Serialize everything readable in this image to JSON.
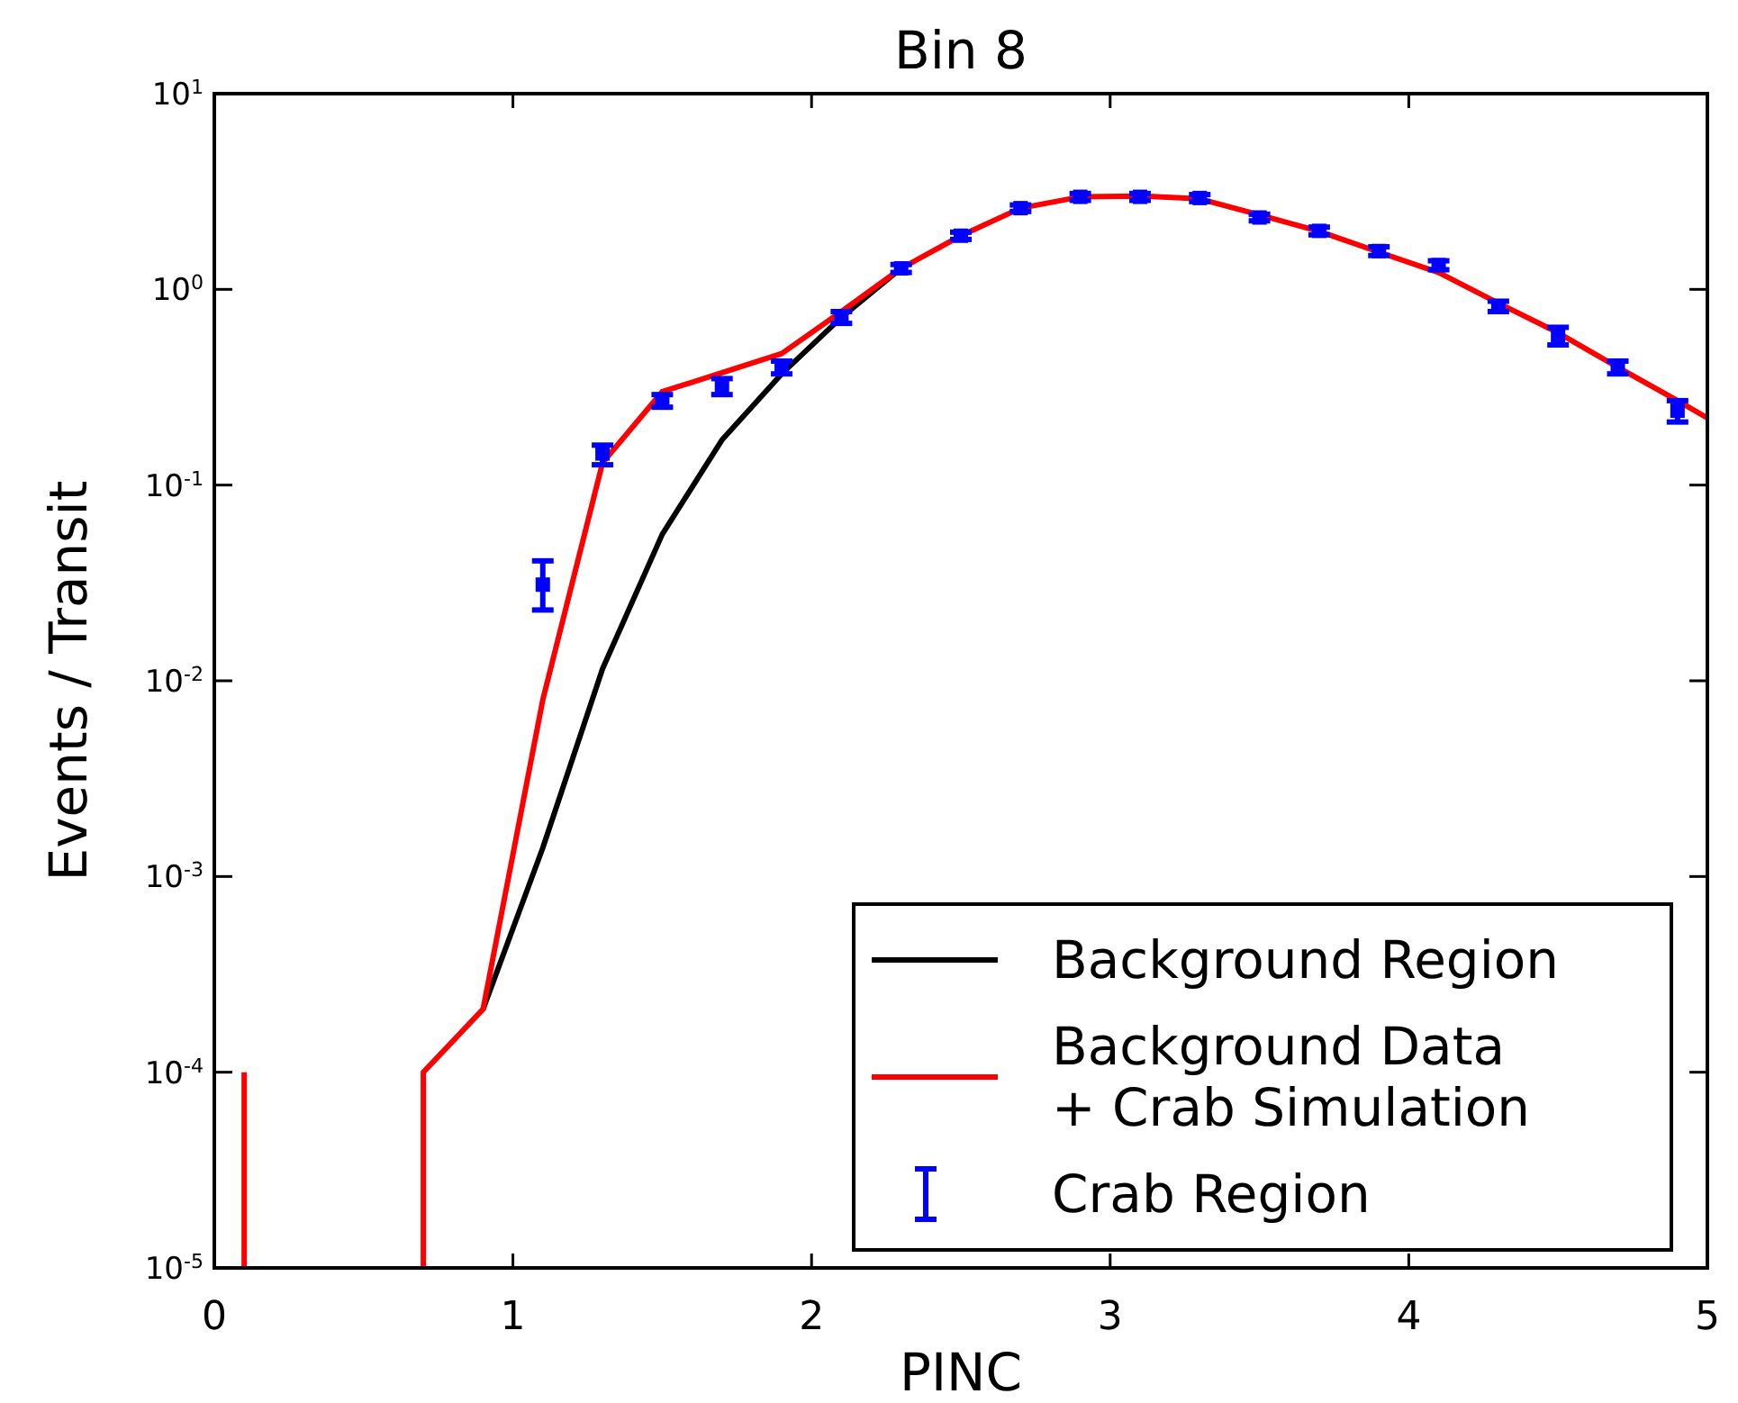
{
  "chart_data": {
    "type": "line",
    "title": "Bin 8",
    "xlabel": "PINC",
    "ylabel": "Events / Transit",
    "log": "y",
    "xlim": [
      0,
      5
    ],
    "xticks": [
      0,
      1,
      2,
      3,
      4,
      5
    ],
    "ylim": [
      1e-05,
      10
    ],
    "yticks": [
      {
        "value": 1e-05,
        "label": "10$^{-5}$"
      },
      {
        "value": 0.0001,
        "label": "10$^{-4}$"
      },
      {
        "value": 0.001,
        "label": "10$^{-3}$"
      },
      {
        "value": 0.01,
        "label": "10$^{-2}$"
      },
      {
        "value": 0.1,
        "label": "10$^{-1}$"
      },
      {
        "value": 1,
        "label": "10$^{0}$"
      },
      {
        "value": 10,
        "label": "10$^{1}$"
      }
    ],
    "grid": false,
    "legend": "bottom right",
    "marker": "none",
    "line_style": "solid",
    "series": [
      {
        "name": "Background Region",
        "color": "#000000",
        "x": [
          0.9,
          1.1,
          1.3,
          1.5,
          1.7,
          1.9,
          2.1,
          2.3
        ],
        "values": [
          0.00021,
          0.0014,
          0.0115,
          0.056,
          0.17,
          0.37,
          0.72,
          1.28
        ]
      },
      {
        "name": "Background Data\n+ Crab Simulation",
        "color": "#ff0000",
        "x": [
          0.1,
          0.1,
          0.3,
          0.5,
          0.7,
          0.7,
          0.9,
          1.1,
          1.3,
          1.5,
          1.7,
          1.9,
          2.1,
          2.3,
          2.5,
          2.7,
          2.9,
          3.1,
          3.3,
          3.5,
          3.7,
          3.9,
          4.1,
          4.3,
          4.5,
          4.7,
          4.9,
          5.0
        ],
        "values": [
          0.0001,
          1e-05,
          null,
          null,
          1e-05,
          0.0001,
          0.00021,
          0.008,
          0.13,
          0.3,
          0.375,
          0.47,
          0.77,
          1.28,
          1.88,
          2.6,
          2.97,
          3.0,
          2.9,
          2.4,
          1.98,
          1.55,
          1.22,
          0.85,
          0.6,
          0.4,
          0.27,
          0.22
        ]
      },
      {
        "name": "Crab Region",
        "type": "scatter",
        "marker": "square",
        "color": "#0000ff",
        "x": [
          1.1,
          1.3,
          1.5,
          1.7,
          1.9,
          2.1,
          2.3,
          2.5,
          2.7,
          2.9,
          3.1,
          3.3,
          3.5,
          3.7,
          3.9,
          4.1,
          4.3,
          4.5,
          4.7,
          4.9
        ],
        "values": [
          0.031,
          0.145,
          0.27,
          0.32,
          0.4,
          0.72,
          1.28,
          1.88,
          2.6,
          2.97,
          2.97,
          2.93,
          2.33,
          1.99,
          1.57,
          1.33,
          0.82,
          0.58,
          0.4,
          0.24
        ],
        "errors": [
          [
            0.023,
            0.041
          ],
          [
            0.127,
            0.16
          ],
          [
            0.25,
            0.29
          ],
          [
            0.29,
            0.35
          ],
          [
            0.37,
            0.43
          ],
          [
            0.67,
            0.77
          ],
          [
            1.22,
            1.34
          ],
          [
            1.8,
            1.96
          ],
          [
            2.5,
            2.7
          ],
          [
            2.85,
            3.09
          ],
          [
            2.85,
            3.09
          ],
          [
            2.81,
            3.05
          ],
          [
            2.24,
            2.42
          ],
          [
            1.9,
            2.08
          ],
          [
            1.49,
            1.65
          ],
          [
            1.26,
            1.4
          ],
          [
            0.77,
            0.87
          ],
          [
            0.52,
            0.64
          ],
          [
            0.37,
            0.43
          ],
          [
            0.21,
            0.27
          ]
        ]
      }
    ]
  }
}
